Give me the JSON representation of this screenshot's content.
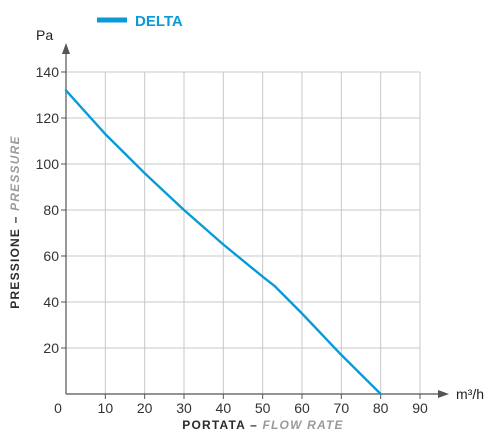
{
  "colors": {
    "series": "#0a9ad8",
    "grid": "#c8c8c8",
    "axis": "#555555",
    "axis_title_main": "#2b2b2b",
    "axis_title_sub": "#9a9a9a"
  },
  "chart_data": {
    "type": "line",
    "legend": {
      "position": "top-left",
      "entries": [
        "DELTA"
      ]
    },
    "series": [
      {
        "name": "DELTA",
        "x": [
          0,
          10,
          20,
          30,
          40,
          50,
          53,
          60,
          70,
          80
        ],
        "y": [
          132,
          113,
          96,
          80,
          65,
          51,
          47,
          35,
          17,
          0
        ]
      }
    ],
    "xlim": [
      0,
      90
    ],
    "ylim": [
      0,
      140
    ],
    "x_ticks": [
      0,
      10,
      20,
      30,
      40,
      50,
      60,
      70,
      80,
      90
    ],
    "y_ticks": [
      20,
      40,
      60,
      80,
      100,
      120,
      140
    ],
    "x_unit": "m³/h",
    "y_unit": "Pa",
    "xlabel": {
      "main": "PORTATA",
      "separator": " – ",
      "sub": "FLOW RATE"
    },
    "ylabel": {
      "main": "PRESSIONE",
      "separator": " – ",
      "sub": "PRESSURE"
    },
    "grid": true
  }
}
